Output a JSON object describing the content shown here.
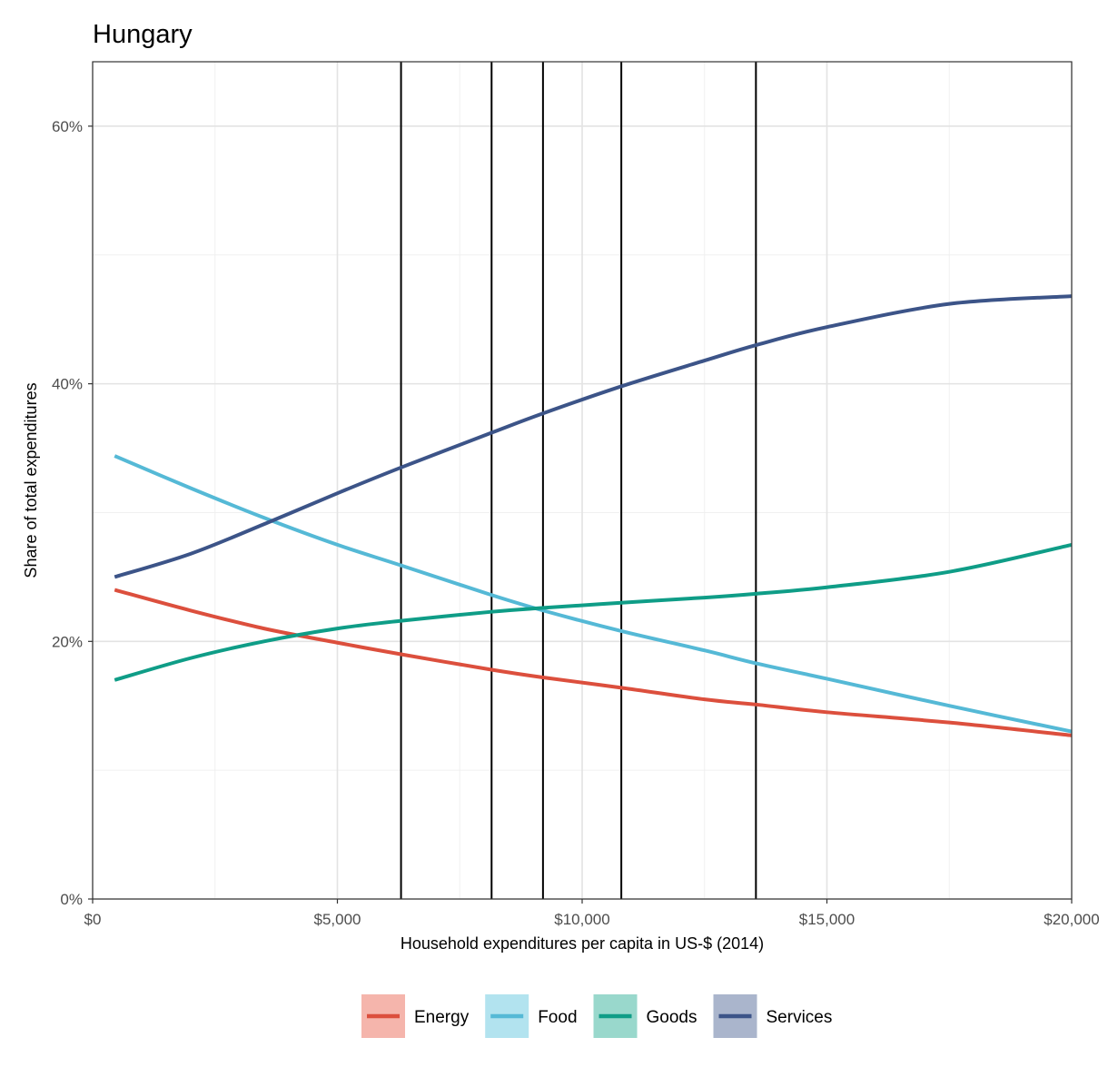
{
  "chart_data": {
    "type": "line",
    "title": "Hungary",
    "xlabel": "Household expenditures per capita in US-$ (2014)",
    "ylabel": "Share of total expenditures",
    "xlim": [
      0,
      20000
    ],
    "ylim": [
      0,
      0.65
    ],
    "x_ticks": [
      {
        "value": 0,
        "label": "$0"
      },
      {
        "value": 5000,
        "label": "$5,000"
      },
      {
        "value": 10000,
        "label": "$10,000"
      },
      {
        "value": 15000,
        "label": "$15,000"
      },
      {
        "value": 20000,
        "label": "$20,000"
      }
    ],
    "y_ticks": [
      {
        "value": 0,
        "label": "0%"
      },
      {
        "value": 0.2,
        "label": "20%"
      },
      {
        "value": 0.4,
        "label": "40%"
      },
      {
        "value": 0.6,
        "label": "60%"
      }
    ],
    "grid": true,
    "vertical_lines": [
      6300,
      8150,
      9200,
      10800,
      13550
    ],
    "legend_position": "bottom",
    "series": [
      {
        "name": "Energy",
        "color": "#dc4f3d",
        "legend_fill": "#f5b5ac",
        "x": [
          450,
          2000,
          3500,
          5000,
          6300,
          8150,
          9200,
          10800,
          12500,
          13550,
          15000,
          17500,
          20000
        ],
        "values": [
          0.24,
          0.224,
          0.21,
          0.199,
          0.19,
          0.178,
          0.172,
          0.164,
          0.155,
          0.151,
          0.145,
          0.137,
          0.127
        ]
      },
      {
        "name": "Food",
        "color": "#55b9d6",
        "legend_fill": "#b2e3ef",
        "x": [
          450,
          2000,
          3500,
          5000,
          6300,
          8150,
          9200,
          10800,
          12500,
          13550,
          15000,
          17500,
          20000
        ],
        "values": [
          0.344,
          0.319,
          0.296,
          0.275,
          0.259,
          0.236,
          0.224,
          0.208,
          0.193,
          0.183,
          0.171,
          0.15,
          0.13
        ]
      },
      {
        "name": "Goods",
        "color": "#0f9d87",
        "legend_fill": "#99d8cc",
        "x": [
          450,
          2000,
          3500,
          5000,
          6300,
          8150,
          9200,
          10800,
          12500,
          13550,
          15000,
          17500,
          20000
        ],
        "values": [
          0.17,
          0.187,
          0.2,
          0.21,
          0.216,
          0.223,
          0.226,
          0.23,
          0.234,
          0.237,
          0.242,
          0.254,
          0.275
        ]
      },
      {
        "name": "Services",
        "color": "#3c5488",
        "legend_fill": "#aab5cc",
        "x": [
          450,
          2000,
          3500,
          5000,
          6300,
          8150,
          9200,
          10800,
          12500,
          13550,
          15000,
          17500,
          20000
        ],
        "values": [
          0.25,
          0.268,
          0.291,
          0.315,
          0.335,
          0.362,
          0.377,
          0.398,
          0.418,
          0.43,
          0.444,
          0.462,
          0.468
        ]
      }
    ]
  }
}
